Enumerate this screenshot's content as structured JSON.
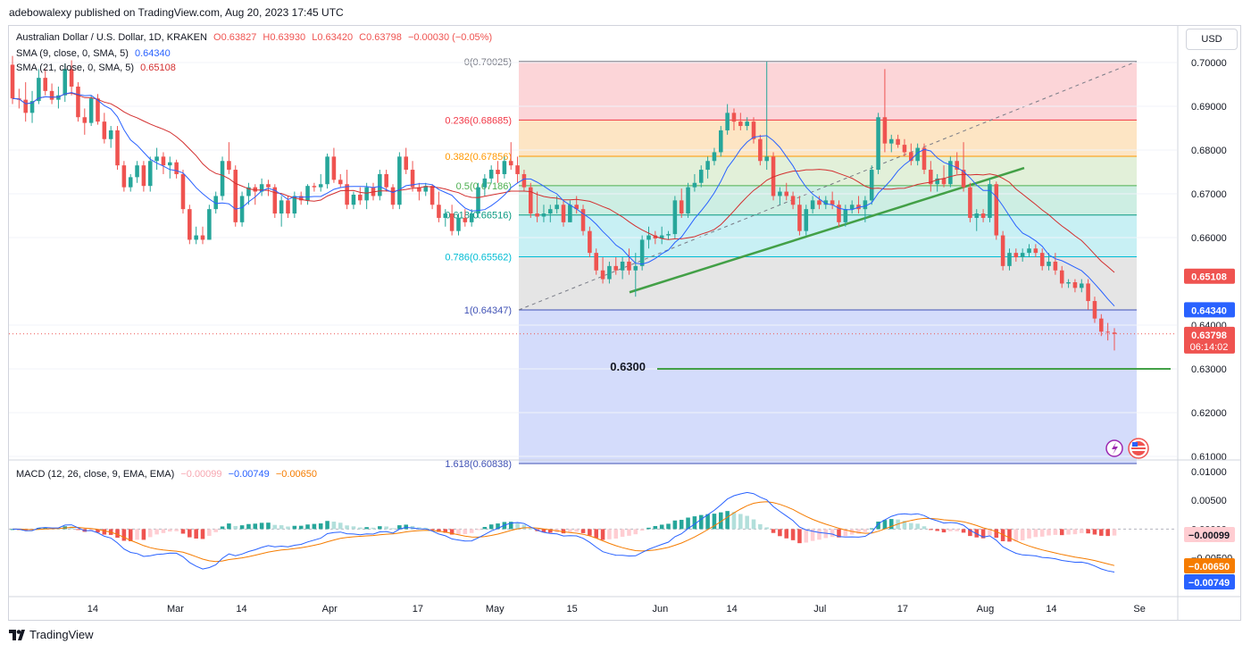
{
  "publisher_line": "adebowalexy published on TradingView.com, Aug 20, 2023 17:45 UTC",
  "legend": {
    "symbol": "Australian Dollar / U.S. Dollar, 1D, KRAKEN",
    "open": "O0.63827",
    "high": "H0.63930",
    "low": "L0.63420",
    "close": "C0.63798",
    "change": "−0.00030 (−0.05%)",
    "sma9_label": "SMA (9, close, 0, SMA, 5)",
    "sma9_value": "0.64340",
    "sma21_label": "SMA (21, close, 0, SMA, 5)",
    "sma21_value": "0.65108",
    "macd_label": "MACD (12, 26, close, 9, EMA, EMA)",
    "macd_hist": "−0.00099",
    "macd_line": "−0.00749",
    "macd_signal": "−0.00650"
  },
  "currency_button": "USD",
  "footer_brand": "TradingView",
  "colors": {
    "up": "#26a69a",
    "down": "#ef5350",
    "sma9": "#2962ff",
    "sma21": "#d32f2f",
    "macd_line": "#2962ff",
    "signal_line": "#f57c00",
    "trendline": "#43a047"
  },
  "chart_data": {
    "type": "candlestick",
    "symbol": "AUDUSD",
    "interval": "1D",
    "x_tick_labels": [
      "14",
      "Mar",
      "14",
      "Apr",
      "17",
      "May",
      "15",
      "Jun",
      "14",
      "Jul",
      "17",
      "Aug",
      "14",
      "Se"
    ],
    "y_tick_labels": [
      "0.70000",
      "0.69000",
      "0.68000",
      "0.67000",
      "0.66000",
      "0.64000",
      "0.63000",
      "0.62000",
      "0.61000"
    ],
    "ylim": [
      0.609,
      0.7105
    ],
    "fibonacci": [
      {
        "level": "0",
        "label": "0(0.70025)",
        "price": 0.70025,
        "color": "#787b86"
      },
      {
        "level": "0.236",
        "label": "0.236(0.68685)",
        "price": 0.68685,
        "color": "#f23645"
      },
      {
        "level": "0.382",
        "label": "0.382(0.67856)",
        "price": 0.67856,
        "color": "#ff9800"
      },
      {
        "level": "0.5",
        "label": "0.5(0.67186)",
        "price": 0.67186,
        "color": "#4caf50"
      },
      {
        "level": "0.618",
        "label": "0.618(0.66516)",
        "price": 0.66516,
        "color": "#089981"
      },
      {
        "level": "0.786",
        "label": "0.786(0.65562)",
        "price": 0.65562,
        "color": "#00bcd4"
      },
      {
        "level": "1",
        "label": "1(0.64347)",
        "price": 0.64347,
        "color": "#3f51b5"
      },
      {
        "level": "1.618",
        "label": "1.618(0.60838)",
        "price": 0.60838,
        "color": "#3f51b5"
      }
    ],
    "support_level": {
      "label": "0.6300",
      "price": 0.63
    },
    "trendline": {
      "start": [
        0.6475
      ],
      "end": [
        0.6759
      ]
    },
    "price_badges": [
      {
        "label": "0.65108",
        "price": 0.65108,
        "color": "#ef5350"
      },
      {
        "label": "0.64340",
        "price": 0.6434,
        "color": "#2962ff"
      },
      {
        "label": "0.63798",
        "price": 0.63798,
        "color": "#ef5350"
      }
    ],
    "countdown": "06:14:02",
    "candles": [
      [
        0.6995,
        0.7015,
        0.6905,
        0.6918
      ],
      [
        0.6918,
        0.694,
        0.6895,
        0.6915
      ],
      [
        0.6915,
        0.6955,
        0.6865,
        0.6885
      ],
      [
        0.6885,
        0.6935,
        0.6862,
        0.6912
      ],
      [
        0.6912,
        0.6985,
        0.6905,
        0.6965
      ],
      [
        0.6965,
        0.6985,
        0.6925,
        0.6935
      ],
      [
        0.6935,
        0.6952,
        0.6905,
        0.6915
      ],
      [
        0.6915,
        0.6945,
        0.6895,
        0.6925
      ],
      [
        0.6925,
        0.6998,
        0.691,
        0.6985
      ],
      [
        0.6985,
        0.7005,
        0.6925,
        0.6945
      ],
      [
        0.6945,
        0.6955,
        0.6865,
        0.6875
      ],
      [
        0.6875,
        0.6895,
        0.6835,
        0.6862
      ],
      [
        0.6862,
        0.6925,
        0.6855,
        0.6918
      ],
      [
        0.6918,
        0.6928,
        0.6858,
        0.6865
      ],
      [
        0.6865,
        0.6885,
        0.6815,
        0.6825
      ],
      [
        0.6825,
        0.6855,
        0.6805,
        0.6845
      ],
      [
        0.6845,
        0.6855,
        0.6755,
        0.6765
      ],
      [
        0.6765,
        0.6775,
        0.6705,
        0.6715
      ],
      [
        0.6715,
        0.6745,
        0.6705,
        0.6738
      ],
      [
        0.6738,
        0.6775,
        0.6725,
        0.6765
      ],
      [
        0.6765,
        0.6775,
        0.6705,
        0.6718
      ],
      [
        0.6718,
        0.6785,
        0.6705,
        0.6775
      ],
      [
        0.6775,
        0.6805,
        0.6755,
        0.6785
      ],
      [
        0.6785,
        0.6795,
        0.6745,
        0.6765
      ],
      [
        0.6765,
        0.6785,
        0.6735,
        0.6772
      ],
      [
        0.6772,
        0.6778,
        0.6735,
        0.6745
      ],
      [
        0.6745,
        0.6755,
        0.6655,
        0.6665
      ],
      [
        0.6665,
        0.6675,
        0.6585,
        0.6595
      ],
      [
        0.6595,
        0.6625,
        0.6585,
        0.6605
      ],
      [
        0.6605,
        0.6625,
        0.6585,
        0.6595
      ],
      [
        0.6595,
        0.6675,
        0.6595,
        0.6665
      ],
      [
        0.6665,
        0.6705,
        0.6655,
        0.6695
      ],
      [
        0.6695,
        0.6785,
        0.6685,
        0.6775
      ],
      [
        0.6775,
        0.6818,
        0.6745,
        0.6755
      ],
      [
        0.6755,
        0.6765,
        0.6625,
        0.6635
      ],
      [
        0.6635,
        0.6705,
        0.6625,
        0.6695
      ],
      [
        0.6695,
        0.6725,
        0.6675,
        0.6715
      ],
      [
        0.6715,
        0.6722,
        0.6675,
        0.6705
      ],
      [
        0.6705,
        0.6735,
        0.6695,
        0.6722
      ],
      [
        0.6722,
        0.6732,
        0.6695,
        0.6715
      ],
      [
        0.6715,
        0.6722,
        0.6645,
        0.6655
      ],
      [
        0.6655,
        0.6695,
        0.6625,
        0.6685
      ],
      [
        0.6685,
        0.6695,
        0.6645,
        0.6655
      ],
      [
        0.6655,
        0.6705,
        0.6645,
        0.6695
      ],
      [
        0.6695,
        0.6705,
        0.6675,
        0.6685
      ],
      [
        0.6685,
        0.6722,
        0.6675,
        0.6718
      ],
      [
        0.6718,
        0.6725,
        0.6705,
        0.6715
      ],
      [
        0.6715,
        0.6745,
        0.6705,
        0.6722
      ],
      [
        0.6722,
        0.6792,
        0.6712,
        0.6785
      ],
      [
        0.6785,
        0.6805,
        0.6725,
        0.6732
      ],
      [
        0.6732,
        0.6745,
        0.6715,
        0.6722
      ],
      [
        0.6722,
        0.6755,
        0.6665,
        0.6675
      ],
      [
        0.6675,
        0.6705,
        0.6665,
        0.6698
      ],
      [
        0.6698,
        0.6715,
        0.6675,
        0.6685
      ],
      [
        0.6685,
        0.6725,
        0.6665,
        0.6715
      ],
      [
        0.6715,
        0.6725,
        0.6685,
        0.6695
      ],
      [
        0.6695,
        0.6755,
        0.6685,
        0.6745
      ],
      [
        0.6745,
        0.6755,
        0.6705,
        0.6715
      ],
      [
        0.6715,
        0.6722,
        0.6665,
        0.6675
      ],
      [
        0.6675,
        0.6795,
        0.6665,
        0.6785
      ],
      [
        0.6785,
        0.6805,
        0.6745,
        0.6755
      ],
      [
        0.6755,
        0.6775,
        0.6705,
        0.6715
      ],
      [
        0.6715,
        0.6725,
        0.6685,
        0.6705
      ],
      [
        0.6705,
        0.6725,
        0.6695,
        0.6718
      ],
      [
        0.6718,
        0.6722,
        0.6665,
        0.6675
      ],
      [
        0.6675,
        0.6705,
        0.6635,
        0.6645
      ],
      [
        0.6645,
        0.6665,
        0.6625,
        0.6655
      ],
      [
        0.6655,
        0.6675,
        0.6605,
        0.6615
      ],
      [
        0.6615,
        0.6655,
        0.6605,
        0.6645
      ],
      [
        0.6645,
        0.6665,
        0.6625,
        0.6635
      ],
      [
        0.6635,
        0.6665,
        0.6625,
        0.6655
      ],
      [
        0.6655,
        0.6725,
        0.6645,
        0.6715
      ],
      [
        0.6715,
        0.6745,
        0.6695,
        0.6735
      ],
      [
        0.6735,
        0.6765,
        0.6725,
        0.6755
      ],
      [
        0.6755,
        0.6775,
        0.6725,
        0.6745
      ],
      [
        0.6745,
        0.6785,
        0.6735,
        0.6775
      ],
      [
        0.6775,
        0.6818,
        0.6755,
        0.6765
      ],
      [
        0.6765,
        0.6785,
        0.6725,
        0.6745
      ],
      [
        0.6745,
        0.6755,
        0.6705,
        0.6715
      ],
      [
        0.6715,
        0.6725,
        0.6645,
        0.6655
      ],
      [
        0.6655,
        0.6705,
        0.6635,
        0.6648
      ],
      [
        0.6648,
        0.6675,
        0.6635,
        0.6655
      ],
      [
        0.6655,
        0.6675,
        0.6635,
        0.6665
      ],
      [
        0.6665,
        0.6695,
        0.6655,
        0.6675
      ],
      [
        0.6675,
        0.6685,
        0.6625,
        0.6635
      ],
      [
        0.6635,
        0.6685,
        0.6635,
        0.6675
      ],
      [
        0.6675,
        0.6695,
        0.6655,
        0.6665
      ],
      [
        0.6665,
        0.6675,
        0.6605,
        0.6615
      ],
      [
        0.6615,
        0.6625,
        0.6555,
        0.6565
      ],
      [
        0.6565,
        0.6575,
        0.6515,
        0.6525
      ],
      [
        0.6525,
        0.6555,
        0.6495,
        0.6505
      ],
      [
        0.6505,
        0.6545,
        0.6495,
        0.6535
      ],
      [
        0.6535,
        0.6555,
        0.6515,
        0.6525
      ],
      [
        0.6525,
        0.6555,
        0.6505,
        0.6545
      ],
      [
        0.6545,
        0.6575,
        0.6515,
        0.6525
      ],
      [
        0.6525,
        0.6565,
        0.6465,
        0.6535
      ],
      [
        0.6535,
        0.6605,
        0.6525,
        0.6595
      ],
      [
        0.6595,
        0.6625,
        0.6575,
        0.6605
      ],
      [
        0.6605,
        0.6615,
        0.6585,
        0.6598
      ],
      [
        0.6598,
        0.6625,
        0.6585,
        0.6605
      ],
      [
        0.6605,
        0.6615,
        0.6595,
        0.6608
      ],
      [
        0.6608,
        0.6695,
        0.6598,
        0.6685
      ],
      [
        0.6685,
        0.6712,
        0.6645,
        0.6655
      ],
      [
        0.6655,
        0.6725,
        0.6645,
        0.6715
      ],
      [
        0.6715,
        0.6745,
        0.6705,
        0.6725
      ],
      [
        0.6725,
        0.6765,
        0.6715,
        0.6755
      ],
      [
        0.6755,
        0.6785,
        0.6735,
        0.6775
      ],
      [
        0.6775,
        0.6805,
        0.6765,
        0.6795
      ],
      [
        0.6795,
        0.6855,
        0.6785,
        0.6845
      ],
      [
        0.6845,
        0.6905,
        0.6835,
        0.6885
      ],
      [
        0.6885,
        0.6895,
        0.6845,
        0.6865
      ],
      [
        0.6865,
        0.6885,
        0.6845,
        0.6855
      ],
      [
        0.6855,
        0.6875,
        0.6845,
        0.6865
      ],
      [
        0.6865,
        0.6875,
        0.6815,
        0.6825
      ],
      [
        0.6825,
        0.6835,
        0.6765,
        0.6775
      ],
      [
        0.6775,
        0.7002,
        0.6755,
        0.6785
      ],
      [
        0.6785,
        0.6795,
        0.6685,
        0.6695
      ],
      [
        0.6695,
        0.6715,
        0.6675,
        0.6705
      ],
      [
        0.6705,
        0.6725,
        0.6685,
        0.6695
      ],
      [
        0.6695,
        0.6705,
        0.6665,
        0.6675
      ],
      [
        0.6675,
        0.6695,
        0.6605,
        0.6615
      ],
      [
        0.6615,
        0.6675,
        0.6605,
        0.6665
      ],
      [
        0.6665,
        0.6695,
        0.6655,
        0.6685
      ],
      [
        0.6685,
        0.6695,
        0.6665,
        0.6675
      ],
      [
        0.6675,
        0.6695,
        0.6665,
        0.6685
      ],
      [
        0.6685,
        0.6705,
        0.6665,
        0.6675
      ],
      [
        0.6675,
        0.6685,
        0.6625,
        0.6635
      ],
      [
        0.6635,
        0.6675,
        0.6625,
        0.6665
      ],
      [
        0.6665,
        0.6685,
        0.6655,
        0.6675
      ],
      [
        0.6675,
        0.6695,
        0.6655,
        0.6665
      ],
      [
        0.6665,
        0.6695,
        0.6635,
        0.6685
      ],
      [
        0.6685,
        0.6765,
        0.6675,
        0.6755
      ],
      [
        0.6755,
        0.6885,
        0.6745,
        0.6875
      ],
      [
        0.6875,
        0.6985,
        0.6795,
        0.6815
      ],
      [
        0.6815,
        0.6835,
        0.6795,
        0.6825
      ],
      [
        0.6825,
        0.6835,
        0.6805,
        0.6812
      ],
      [
        0.6812,
        0.6825,
        0.6785,
        0.6795
      ],
      [
        0.6795,
        0.6815,
        0.6765,
        0.6775
      ],
      [
        0.6775,
        0.6815,
        0.6765,
        0.6805
      ],
      [
        0.6805,
        0.6815,
        0.6745,
        0.6755
      ],
      [
        0.6755,
        0.6775,
        0.6705,
        0.6722
      ],
      [
        0.6722,
        0.6745,
        0.6705,
        0.6735
      ],
      [
        0.6735,
        0.6765,
        0.6715,
        0.6722
      ],
      [
        0.6722,
        0.6785,
        0.6715,
        0.6775
      ],
      [
        0.6775,
        0.6795,
        0.6745,
        0.6755
      ],
      [
        0.6755,
        0.6818,
        0.6705,
        0.6715
      ],
      [
        0.6715,
        0.6725,
        0.6635,
        0.6645
      ],
      [
        0.6645,
        0.6665,
        0.6615,
        0.6655
      ],
      [
        0.6655,
        0.6665,
        0.6635,
        0.6645
      ],
      [
        0.6645,
        0.6735,
        0.6635,
        0.6722
      ],
      [
        0.6722,
        0.6728,
        0.6595,
        0.6605
      ],
      [
        0.6605,
        0.6615,
        0.6525,
        0.6535
      ],
      [
        0.6535,
        0.6575,
        0.6525,
        0.6565
      ],
      [
        0.6565,
        0.6575,
        0.6545,
        0.6555
      ],
      [
        0.6555,
        0.6575,
        0.6545,
        0.6565
      ],
      [
        0.6565,
        0.6585,
        0.6555,
        0.6575
      ],
      [
        0.6575,
        0.6585,
        0.6555,
        0.6565
      ],
      [
        0.6565,
        0.6575,
        0.6525,
        0.6535
      ],
      [
        0.6535,
        0.6565,
        0.6525,
        0.6545
      ],
      [
        0.6545,
        0.6565,
        0.6515,
        0.6525
      ],
      [
        0.6525,
        0.6535,
        0.6485,
        0.6495
      ],
      [
        0.6495,
        0.6505,
        0.6485,
        0.6498
      ],
      [
        0.6498,
        0.6505,
        0.6475,
        0.6485
      ],
      [
        0.6485,
        0.6505,
        0.6475,
        0.6495
      ],
      [
        0.6495,
        0.6505,
        0.6435,
        0.6455
      ],
      [
        0.6455,
        0.6465,
        0.6405,
        0.6415
      ],
      [
        0.6415,
        0.6425,
        0.6375,
        0.6385
      ],
      [
        0.6385,
        0.6405,
        0.6365,
        0.6383
      ],
      [
        0.6383,
        0.6393,
        0.6342,
        0.638
      ]
    ],
    "macd_y_tick_labels": [
      "0.01000",
      "0.00500",
      "0.00000",
      "−0.00500"
    ],
    "macd_ylim": [
      -0.0112,
      0.0105
    ],
    "macd_badges": [
      {
        "label": "−0.00099",
        "value": -0.00099,
        "color": "#ef5350"
      },
      {
        "label": "−0.00650",
        "value": -0.0065,
        "color": "#f57c00"
      },
      {
        "label": "−0.00749",
        "value": -0.00749,
        "color": "#2962ff"
      }
    ]
  }
}
